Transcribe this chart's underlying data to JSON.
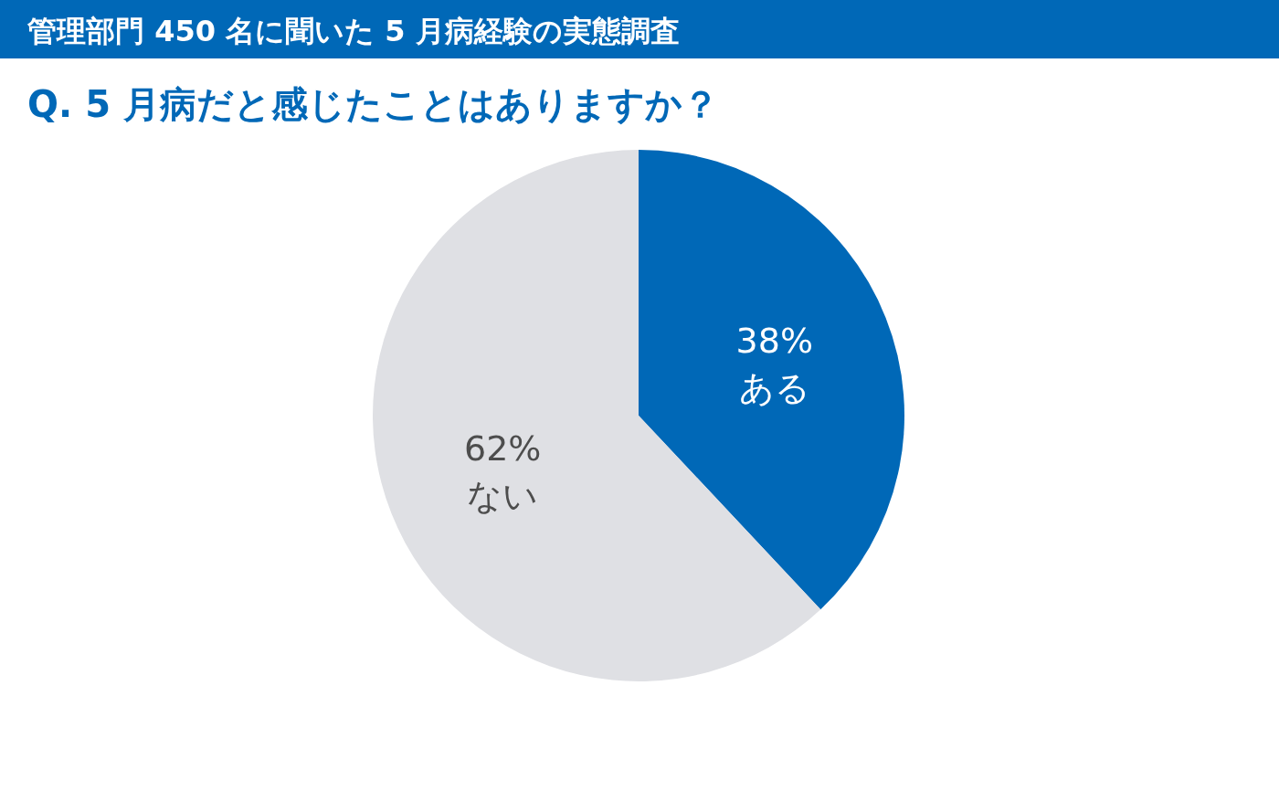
{
  "chart_data": {
    "type": "pie",
    "title": "管理部門 450 名に聞いた 5 月病経験の実態調査",
    "subtitle": "Q. 5 月病だと感じたことはありますか？",
    "categories": [
      "ある",
      "ない"
    ],
    "values": [
      38,
      62
    ],
    "colors": [
      "#0068b7",
      "#dfe0e4"
    ],
    "value_labels": [
      "38%",
      "62%"
    ]
  }
}
